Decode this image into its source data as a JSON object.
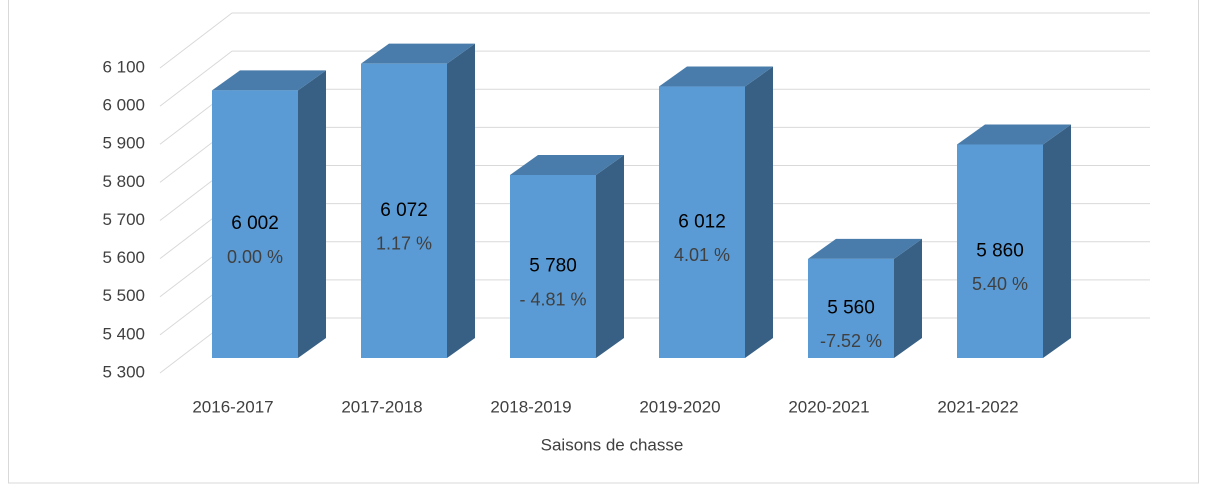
{
  "chart_data": {
    "type": "bar3d",
    "x_label": "Saisons de chasse",
    "categories": [
      "2016-2017",
      "2017-2018",
      "2018-2019",
      "2019-2020",
      "2020-2021",
      "2021-2022"
    ],
    "values": [
      6002,
      6072,
      5780,
      6012,
      5560,
      5860
    ],
    "value_labels": [
      "6 002",
      "6 072",
      "5 780",
      "6 012",
      "5 560",
      "5 860"
    ],
    "change_labels": [
      "0.00 %",
      "1.17 %",
      "- 4.81 %",
      "4.01 %",
      "-7.52 %",
      "5.40 %"
    ],
    "color": "#5b9bd5",
    "ylim": [
      5300,
      6100
    ],
    "yticks": [
      {
        "value": 5300,
        "label": "5 300"
      },
      {
        "value": 5400,
        "label": "5 400"
      },
      {
        "value": 5500,
        "label": "5 500"
      },
      {
        "value": 5600,
        "label": "5 600"
      },
      {
        "value": 5700,
        "label": "5 700"
      },
      {
        "value": 5800,
        "label": "5 800"
      },
      {
        "value": 5900,
        "label": "5 900"
      },
      {
        "value": 6000,
        "label": "6 000"
      },
      {
        "value": 6100,
        "label": "6 100"
      }
    ],
    "grid": true
  }
}
